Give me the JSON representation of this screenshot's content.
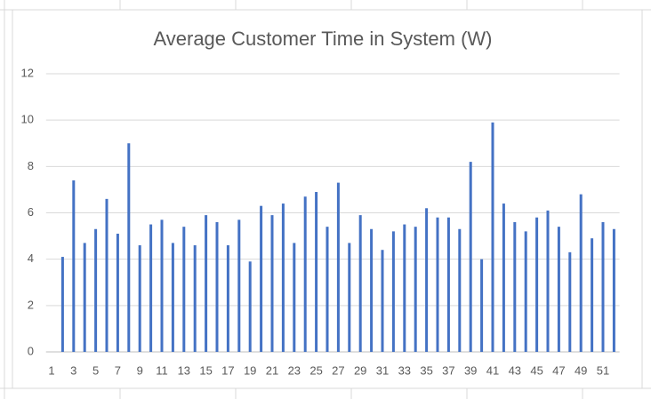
{
  "chart_data": {
    "type": "bar",
    "title": "Average Customer Time in System (W)",
    "categories": [
      "1",
      null,
      "3",
      null,
      "5",
      null,
      "7",
      null,
      "9",
      null,
      "11",
      null,
      "13",
      null,
      "15",
      null,
      "17",
      null,
      "19",
      null,
      "21",
      null,
      "23",
      null,
      "25",
      null,
      "27",
      null,
      "29",
      null,
      "31",
      null,
      "33",
      null,
      "35",
      null,
      "37",
      null,
      "39",
      null,
      "41",
      null,
      "43",
      null,
      "45",
      null,
      "47",
      null,
      "49",
      null,
      "51",
      null
    ],
    "values": [
      null,
      4.1,
      7.4,
      4.7,
      5.3,
      6.6,
      5.1,
      9.0,
      4.6,
      5.5,
      5.7,
      4.7,
      5.4,
      4.6,
      5.9,
      5.6,
      4.6,
      5.7,
      3.9,
      6.3,
      5.9,
      6.4,
      4.7,
      6.7,
      6.9,
      5.4,
      7.3,
      4.7,
      5.9,
      5.3,
      4.4,
      5.2,
      5.5,
      5.4,
      6.2,
      5.8,
      5.8,
      5.3,
      8.2,
      4.0,
      9.9,
      6.4,
      5.6,
      5.2,
      5.8,
      6.1,
      5.4,
      4.3,
      6.8,
      4.9,
      5.6,
      5.3
    ],
    "color": "#4472c4",
    "ylim": [
      0,
      12
    ],
    "yticks": [
      0,
      2,
      4,
      6,
      8,
      10,
      12
    ],
    "grid": true
  }
}
